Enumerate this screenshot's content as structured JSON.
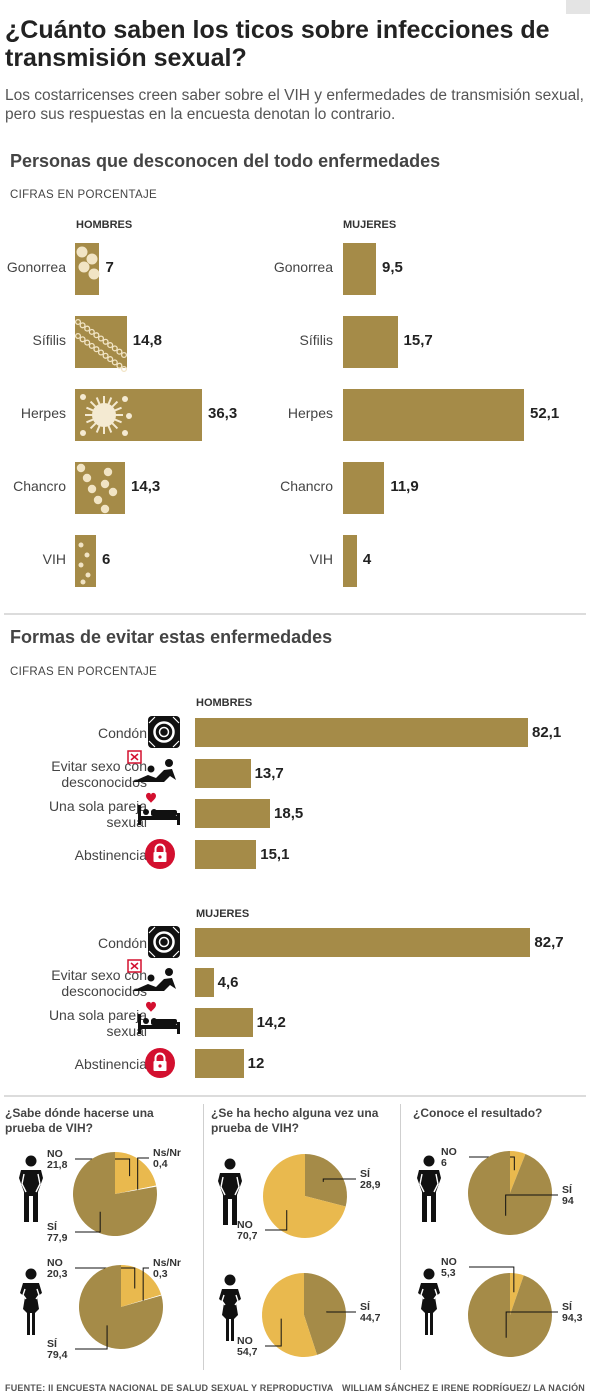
{
  "header": {
    "title": "¿Cuánto saben los ticos sobre infecciones de transmisión sexual?",
    "subtitle": "Los costarricenses creen saber sobre el VIH y enfermedades de transmisión sexual, pero sus respuestas en la encuesta denotan lo contrario."
  },
  "section1": {
    "title": "Personas que desconocen del todo enfermedades",
    "unit": "CIFRAS EN PORCENTAJE"
  },
  "section2": {
    "title": "Formas de evitar estas enfermedades",
    "unit": "CIFRAS EN PORCENTAJE"
  },
  "colors": {
    "bar": "#a58b48",
    "pie_light": "#e9b94e",
    "pie_dark": "#a58b48",
    "lock": "#d3102f"
  },
  "icons": [
    "condom-icon",
    "couple-icon",
    "cross-box-icon",
    "heart-icon",
    "bed-icon",
    "lock-icon",
    "man-icon",
    "woman-icon"
  ],
  "chart_data": [
    {
      "type": "bar",
      "orientation": "horizontal",
      "title": "Personas que desconocen del todo enfermedades",
      "subtitle": "CIFRAS EN PORCENTAJE",
      "categories": [
        "Gonorrea",
        "Sífilis",
        "Herpes",
        "Chancro",
        "VIH"
      ],
      "series": [
        {
          "name": "HOMBRES",
          "values": [
            7,
            14.8,
            36.3,
            14.3,
            6
          ],
          "labels": [
            "7",
            "14,8",
            "36,3",
            "14,3",
            "6"
          ]
        },
        {
          "name": "MUJERES",
          "values": [
            9.5,
            15.7,
            52.1,
            11.9,
            4
          ],
          "labels": [
            "9,5",
            "15,7",
            "52,1",
            "11,9",
            "4"
          ]
        }
      ]
    },
    {
      "type": "bar",
      "orientation": "horizontal",
      "title": "Formas de evitar estas enfermedades",
      "subtitle": "CIFRAS EN PORCENTAJE",
      "series": [
        {
          "name": "HOMBRES",
          "categories": [
            "Condón",
            "Evitar sexo con desconocidos",
            "Una sola pareja sexual",
            "Abstinencia"
          ],
          "values": [
            82.1,
            13.7,
            18.5,
            15.1
          ],
          "labels": [
            "82,1",
            "13,7",
            "18,5",
            "15,1"
          ]
        },
        {
          "name": "MUJERES",
          "categories": [
            "Condón",
            "Evitar sexo con desconocidos",
            "Una sola pareja sexual",
            "Abstinencia"
          ],
          "values": [
            82.7,
            4.6,
            14.2,
            12
          ],
          "labels": [
            "82,7",
            "4,6",
            "14,2",
            "12"
          ]
        }
      ]
    },
    {
      "type": "pie",
      "title": "¿Sabe dónde hacerse una prueba de VIH?",
      "groups": [
        {
          "slices": [
            {
              "name": "NO",
              "value": 21.8,
              "label": "21,8"
            },
            {
              "name": "Ns/Nr",
              "value": 0.4,
              "label": "0,4"
            },
            {
              "name": "SÍ",
              "value": 77.9,
              "label": "77,9"
            }
          ]
        },
        {
          "slices": [
            {
              "name": "NO",
              "value": 20.3,
              "label": "20,3"
            },
            {
              "name": "Ns/Nr",
              "value": 0.3,
              "label": "0,3"
            },
            {
              "name": "SÍ",
              "value": 79.4,
              "label": "79,4"
            }
          ]
        }
      ]
    },
    {
      "type": "pie",
      "title": "¿Se ha hecho alguna vez una prueba de VIH?",
      "groups": [
        {
          "slices": [
            {
              "name": "SÍ",
              "value": 28.9,
              "label": "28,9"
            },
            {
              "name": "NO",
              "value": 70.7,
              "label": "70,7"
            }
          ]
        },
        {
          "slices": [
            {
              "name": "SÍ",
              "value": 44.7,
              "label": "44,7"
            },
            {
              "name": "NO",
              "value": 54.7,
              "label": "54,7"
            }
          ]
        }
      ]
    },
    {
      "type": "pie",
      "title": "¿Conoce el resultado?",
      "groups": [
        {
          "slices": [
            {
              "name": "NO",
              "value": 6,
              "label": "6"
            },
            {
              "name": "SÍ",
              "value": 94,
              "label": "94"
            }
          ]
        },
        {
          "slices": [
            {
              "name": "NO",
              "value": 5.3,
              "label": "5,3"
            },
            {
              "name": "SÍ",
              "value": 94.3,
              "label": "94,3"
            }
          ]
        }
      ]
    }
  ],
  "footer": {
    "source": "FUENTE: II ENCUESTA NACIONAL DE SALUD SEXUAL Y REPRODUCTIVA",
    "credit": "WILLIAM SÁNCHEZ E IRENE RODRÍGUEZ/ LA NACIÓN"
  }
}
